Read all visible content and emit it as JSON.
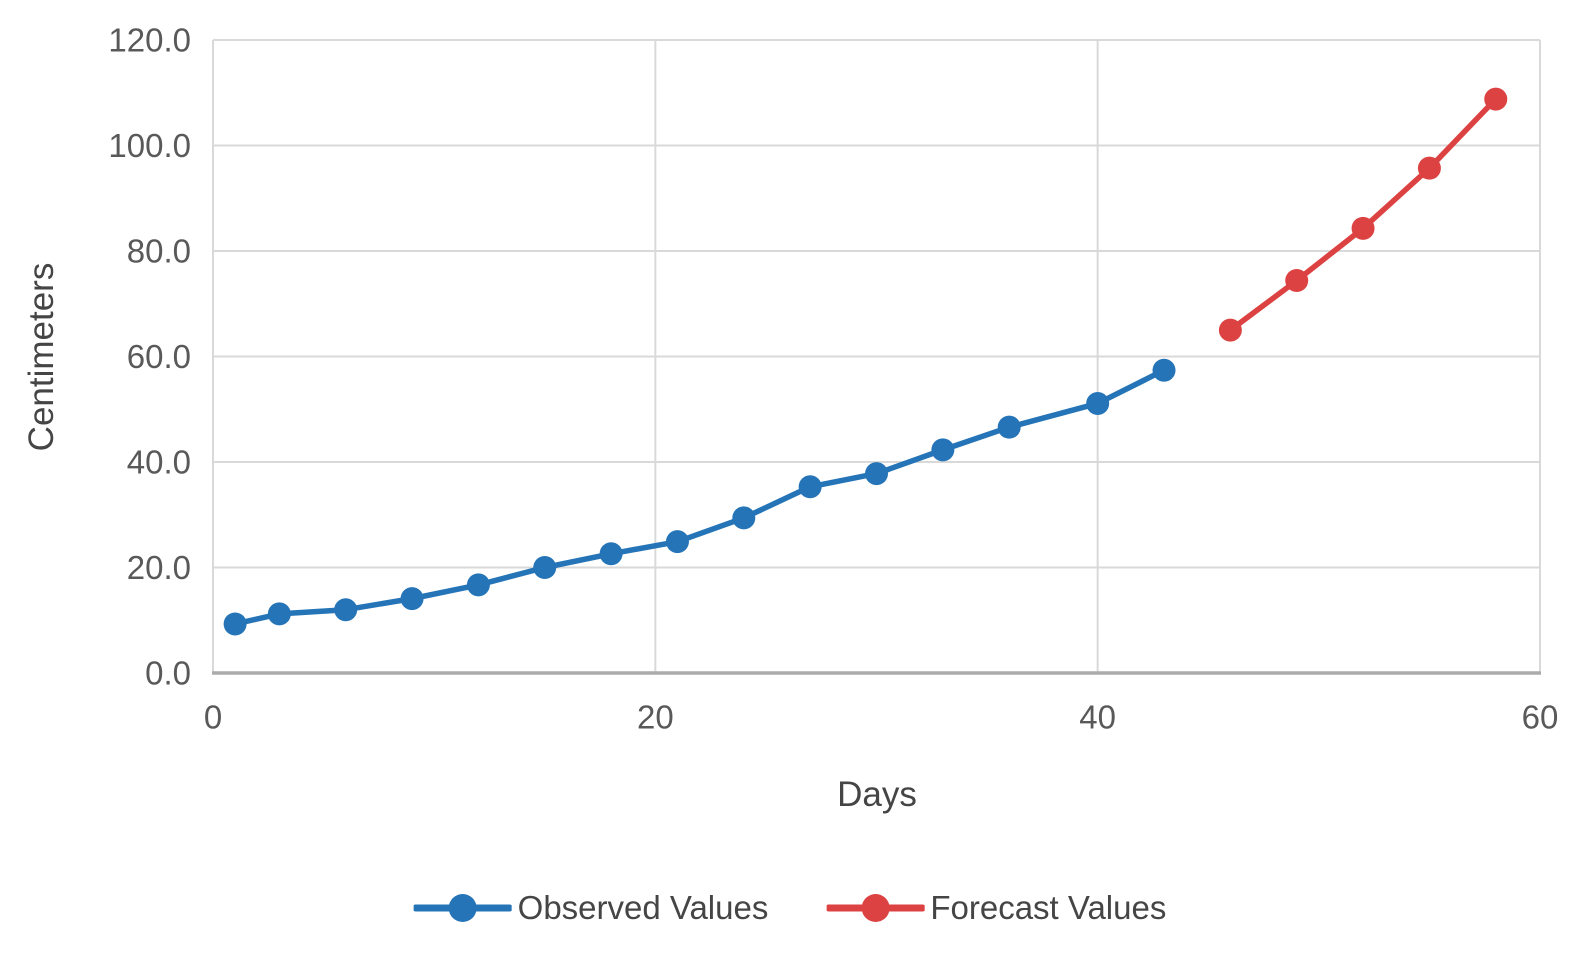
{
  "chart_data": {
    "type": "line",
    "title": "",
    "xlabel": "Days",
    "ylabel": "Centimeters",
    "xlim": [
      0,
      60
    ],
    "ylim": [
      0,
      120
    ],
    "grid": true,
    "legend_position": "bottom-center",
    "background": "#ffffff",
    "gridline_color": "#d9d9d9",
    "axis_line_color": "#ababab",
    "tick_label_color": "#595959",
    "axis_title_color": "#454545",
    "x_ticks": [
      "0",
      "20",
      "40",
      "60"
    ],
    "x_tick_values": [
      0,
      20,
      40,
      60
    ],
    "y_ticks": [
      "0.0",
      "20.0",
      "40.0",
      "60.0",
      "80.0",
      "100.0",
      "120.0"
    ],
    "y_tick_values": [
      0,
      20,
      40,
      60,
      80,
      100,
      120
    ],
    "series": [
      {
        "name": "Observed Values",
        "color": "#2474b7",
        "marker": "circle",
        "x": [
          1,
          3,
          6,
          9,
          12,
          15,
          18,
          21,
          24,
          27,
          30,
          33,
          36,
          40,
          43
        ],
        "y": [
          9.3,
          11.2,
          12.0,
          14.1,
          16.7,
          20.0,
          22.6,
          24.9,
          29.4,
          35.3,
          37.8,
          42.3,
          46.6,
          51.1,
          57.4
        ]
      },
      {
        "name": "Forecast Values",
        "color": "#dd4242",
        "marker": "circle",
        "x": [
          46,
          49,
          52,
          55,
          58
        ],
        "y": [
          65.0,
          74.4,
          84.3,
          95.7,
          108.8
        ]
      }
    ]
  }
}
